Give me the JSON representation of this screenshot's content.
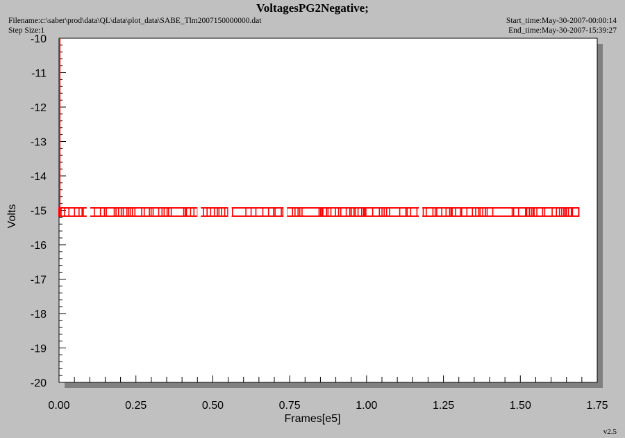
{
  "header": {
    "title": "VoltagesPG2Negative;",
    "filename": "Filename:c:\\saber\\prod\\data\\QL\\data\\plot_data\\SABE_Tlm2007150000000.dat",
    "step_size": "Step Size:1",
    "start_time": "Start_time:May-30-2007-00:00:14",
    "end_time": "End_time:May-30-2007-15:39:27"
  },
  "footer": {
    "version": "v2.5"
  },
  "colors": {
    "background": "#c0c0c0",
    "plot_bg": "#ffffff",
    "series": "#ff0000",
    "shadow": "#808080"
  },
  "chart_data": {
    "type": "line",
    "title": "VoltagesPG2Negative;",
    "xlabel": "Frames[e5]",
    "ylabel": "Volts",
    "xlim": [
      0,
      1.75
    ],
    "ylim": [
      -20,
      -10
    ],
    "xticks": [
      "0.00",
      "0.25",
      "0.50",
      "0.75",
      "1.00",
      "1.25",
      "1.50",
      "1.75"
    ],
    "yticks": [
      "-10",
      "-11",
      "-12",
      "-13",
      "-14",
      "-15",
      "-16",
      "-17",
      "-18",
      "-19",
      "-20"
    ],
    "grid": false,
    "series": [
      {
        "values_description_free": true,
        "x_start": 0.0,
        "x_end": 1.69,
        "levels": [
          -14.93,
          -15.17
        ],
        "initial_spike": {
          "x": 0.0,
          "y_from": -10,
          "y_to": -15.17
        }
      }
    ]
  }
}
